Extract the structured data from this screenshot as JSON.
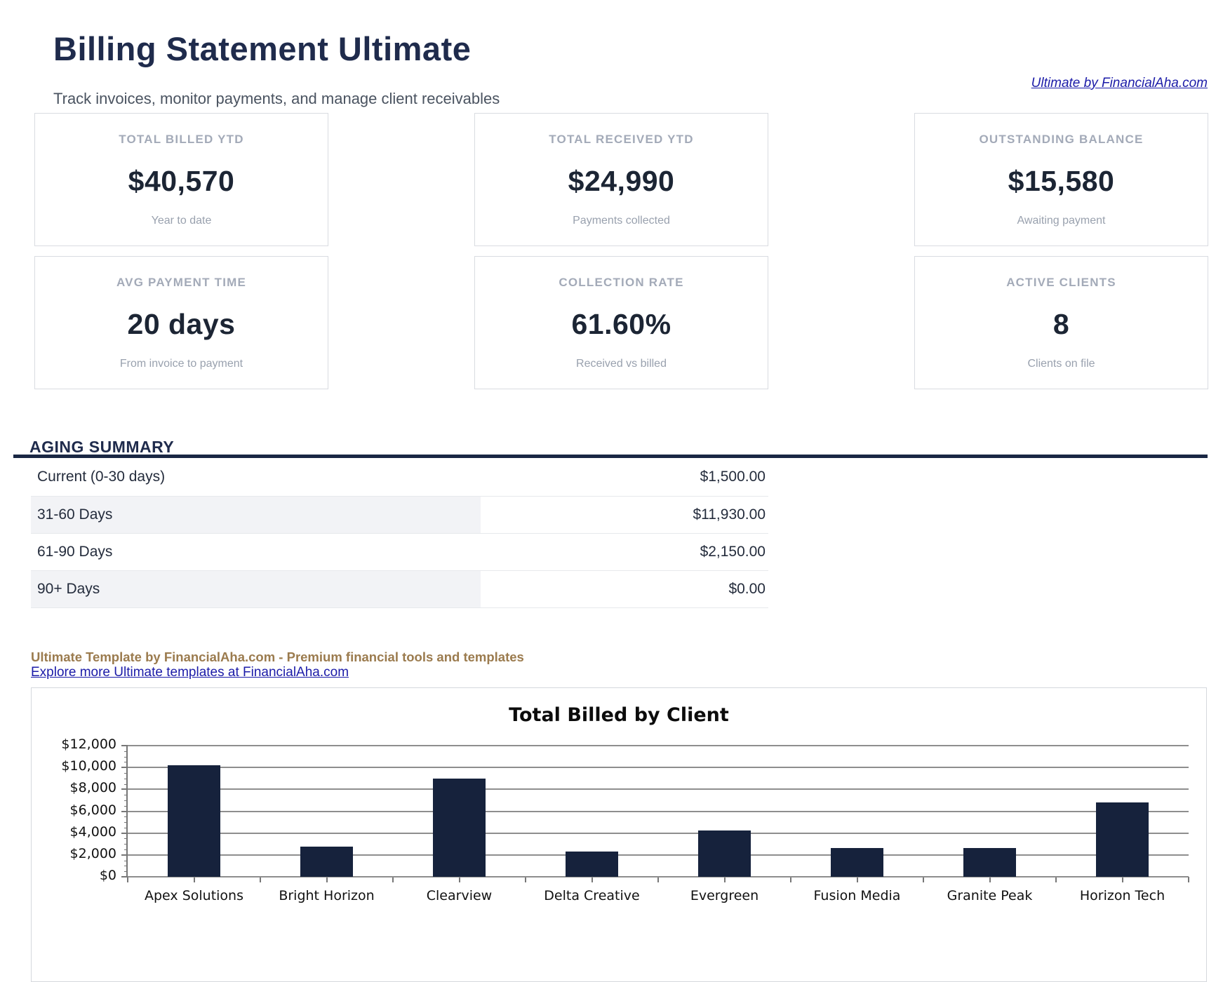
{
  "header": {
    "title": "Billing Statement Ultimate",
    "subtitle": "Track invoices, monitor payments, and manage client receivables",
    "brand_link": "Ultimate by FinancialAha.com"
  },
  "stats": [
    {
      "label": "TOTAL BILLED YTD",
      "value": "$40,570",
      "caption": "Year to date"
    },
    {
      "label": "TOTAL RECEIVED YTD",
      "value": "$24,990",
      "caption": "Payments collected"
    },
    {
      "label": "OUTSTANDING BALANCE",
      "value": "$15,580",
      "caption": "Awaiting payment"
    },
    {
      "label": "AVG PAYMENT TIME",
      "value": "20 days",
      "caption": "From invoice to payment"
    },
    {
      "label": "COLLECTION RATE",
      "value": "61.60%",
      "caption": "Received vs billed"
    },
    {
      "label": "ACTIVE CLIENTS",
      "value": "8",
      "caption": "Clients on file"
    }
  ],
  "aging": {
    "heading": "AGING SUMMARY",
    "rows": [
      {
        "label": "Current (0-30 days)",
        "amount": "$1,500.00"
      },
      {
        "label": "31-60 Days",
        "amount": "$11,930.00"
      },
      {
        "label": "61-90 Days",
        "amount": "$2,150.00"
      },
      {
        "label": "90+ Days",
        "amount": "$0.00"
      }
    ]
  },
  "footer": {
    "tagline": "Ultimate Template by FinancialAha.com - Premium financial tools and templates",
    "explore_link": "Explore more Ultimate templates at FinancialAha.com"
  },
  "theme": {
    "navy": "#1f2b4c",
    "brown": "#9b7b4e",
    "link_blue": "#1b1ba8",
    "label_gray": "#a3aab8"
  },
  "chart_data": {
    "type": "bar",
    "title": "Total Billed by Client",
    "categories": [
      "Apex Solutions",
      "Bright Horizon",
      "Clearview",
      "Delta Creative",
      "Evergreen",
      "Fusion Media",
      "Granite Peak",
      "Horizon Tech"
    ],
    "values": [
      10200,
      2750,
      9000,
      2300,
      4250,
      2600,
      2650,
      6820
    ],
    "xlabel": "",
    "ylabel": "",
    "ylim": [
      0,
      12000
    ],
    "ytick_step": 2000,
    "minor_tick_step": 500,
    "ytick_prefix": "$",
    "grid": true,
    "legend": false,
    "bar_color": "#16223c",
    "grid_color": "#8e8e8e",
    "axis_color": "#777777"
  }
}
